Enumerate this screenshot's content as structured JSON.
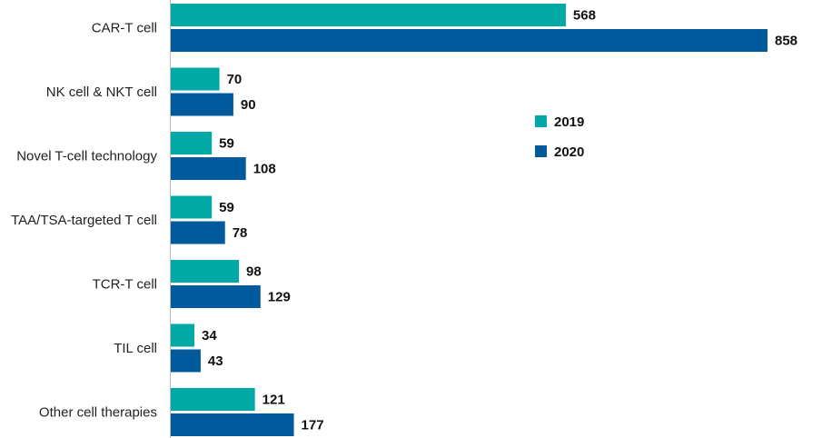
{
  "chart_data": {
    "type": "bar",
    "orientation": "horizontal",
    "categories": [
      "CAR-T cell",
      "NK cell & NKT cell",
      "Novel T-cell technology",
      "TAA/TSA-targeted T cell",
      "TCR-T cell",
      "TIL cell",
      "Other cell therapies"
    ],
    "series": [
      {
        "name": "2019",
        "color": "#00A9A6",
        "values": [
          568,
          70,
          59,
          59,
          98,
          34,
          121
        ]
      },
      {
        "name": "2020",
        "color": "#005A9C",
        "values": [
          858,
          90,
          108,
          78,
          129,
          43,
          177
        ]
      }
    ],
    "xlim": [
      0,
      858
    ],
    "grid": false,
    "legend": "center-right",
    "data_labels": true
  }
}
